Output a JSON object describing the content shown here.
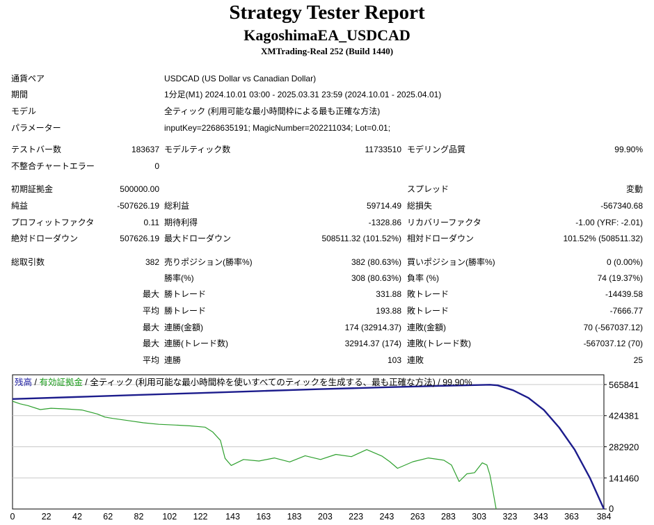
{
  "header": {
    "title": "Strategy Tester Report",
    "ea_name": "KagoshimaEA_USDCAD",
    "server": "XMTrading-Real 252 (Build 1440)"
  },
  "info": {
    "symbol_label": "通貨ペア",
    "symbol_value": "USDCAD (US Dollar vs Canadian Dollar)",
    "period_label": "期間",
    "period_value": "1分足(M1) 2024.10.01 03:00 - 2025.03.31 23:59 (2024.10.01 - 2025.04.01)",
    "model_label": "モデル",
    "model_value": "全ティック (利用可能な最小時間枠による最も正確な方法)",
    "params_label": "パラメーター",
    "params_value": "inputKey=2268635191; MagicNumber=202211034; Lot=0.01;"
  },
  "stats": {
    "bars_label": "テストバー数",
    "bars_value": "183637",
    "ticks_label": "モデルティック数",
    "ticks_value": "11733510",
    "quality_label": "モデリング品質",
    "quality_value": "99.90%",
    "mismatch_label": "不整合チャートエラー",
    "mismatch_value": "0",
    "deposit_label": "初期証拠金",
    "deposit_value": "500000.00",
    "spread_label": "スプレッド",
    "spread_value": "変動",
    "net_label": "純益",
    "net_value": "-507626.19",
    "gross_profit_label": "総利益",
    "gross_profit_value": "59714.49",
    "gross_loss_label": "総損失",
    "gross_loss_value": "-567340.68",
    "pf_label": "プロフィットファクタ",
    "pf_value": "0.11",
    "expected_label": "期待利得",
    "expected_value": "-1328.86",
    "recovery_label": "リカバリーファクタ",
    "recovery_value": "-1.00 (YRF: -2.01)",
    "abs_dd_label": "絶対ドローダウン",
    "abs_dd_value": "507626.19",
    "max_dd_label": "最大ドローダウン",
    "max_dd_value": "508511.32 (101.52%)",
    "rel_dd_label": "相対ドローダウン",
    "rel_dd_value": "101.52% (508511.32)",
    "total_label": "総取引数",
    "total_value": "382",
    "short_label": "売りポジション(勝率%)",
    "short_value": "382 (80.63%)",
    "long_label": "買いポジション(勝率%)",
    "long_value": "0 (0.00%)",
    "winrate_label": "勝率(%)",
    "winrate_value": "308 (80.63%)",
    "lossrate_label": "負率 (%)",
    "lossrate_value": "74 (19.37%)",
    "max_label": "最大",
    "avg_label": "平均",
    "best_label": "勝トレード",
    "best_value": "331.88",
    "worst_label": "敗トレード",
    "worst_value": "-14439.58",
    "avg_win_label": "勝トレード",
    "avg_win_value": "193.88",
    "avg_loss_label": "敗トレード",
    "avg_loss_value": "-7666.77",
    "cons_wins_amt_label": "連勝(金額)",
    "cons_wins_amt_value": "174 (32914.37)",
    "cons_loss_amt_label": "連敗(金額)",
    "cons_loss_amt_value": "70 (-567037.12)",
    "cons_wins_cnt_label": "連勝(トレード数)",
    "cons_wins_cnt_value": "32914.37 (174)",
    "cons_loss_cnt_label": "連敗(トレード数)",
    "cons_loss_cnt_value": "-567037.12 (70)",
    "avg_cons_wins_label": "連勝",
    "avg_cons_wins_value": "103",
    "avg_cons_loss_label": "連敗",
    "avg_cons_loss_value": "25"
  },
  "chart_caption": {
    "balance": "残高",
    "sep": " / ",
    "equity": "有効証拠金",
    "rest": " / 全ティック (利用可能な最小時間枠を使いすべてのティックを生成する、最も正確な方法) / 99.90%"
  },
  "chart_data": {
    "type": "line",
    "xlim": [
      0,
      384
    ],
    "ylim": [
      0,
      565841
    ],
    "x_ticks": [
      "0",
      "22",
      "42",
      "62",
      "82",
      "102",
      "122",
      "143",
      "163",
      "183",
      "203",
      "223",
      "243",
      "263",
      "283",
      "303",
      "323",
      "343",
      "363",
      "384"
    ],
    "y_ticks": [
      "565841",
      "424381",
      "282920",
      "141460",
      "0"
    ],
    "y_tick_values": [
      565841,
      424381,
      282920,
      141460,
      0
    ],
    "grid": true,
    "colors": {
      "balance": "#1c1c8c",
      "equity": "#2ea02e"
    },
    "series": [
      {
        "name": "残高",
        "x": [
          0,
          40,
          80,
          120,
          160,
          200,
          240,
          280,
          310,
          315,
          325,
          335,
          345,
          355,
          365,
          375,
          384
        ],
        "y": [
          500000,
          509000,
          518000,
          527000,
          536000,
          545000,
          553000,
          560000,
          565000,
          562000,
          540000,
          505000,
          450000,
          370000,
          270000,
          140000,
          0
        ]
      },
      {
        "name": "有効証拠金",
        "x": [
          0,
          5,
          10,
          18,
          25,
          35,
          45,
          55,
          60,
          65,
          75,
          85,
          95,
          105,
          115,
          125,
          130,
          135,
          138,
          142,
          150,
          160,
          170,
          180,
          190,
          200,
          210,
          220,
          230,
          240,
          245,
          250,
          260,
          270,
          280,
          285,
          290,
          295,
          300,
          305,
          308,
          310,
          312,
          314
        ],
        "y": [
          490000,
          478000,
          470000,
          452000,
          458000,
          455000,
          450000,
          432000,
          418000,
          412000,
          402000,
          392000,
          385000,
          382000,
          378000,
          372000,
          350000,
          312000,
          230000,
          198000,
          225000,
          218000,
          232000,
          214000,
          242000,
          225000,
          248000,
          238000,
          270000,
          240000,
          215000,
          185000,
          215000,
          232000,
          222000,
          200000,
          125000,
          160000,
          165000,
          210000,
          200000,
          155000,
          80000,
          0
        ]
      }
    ]
  }
}
